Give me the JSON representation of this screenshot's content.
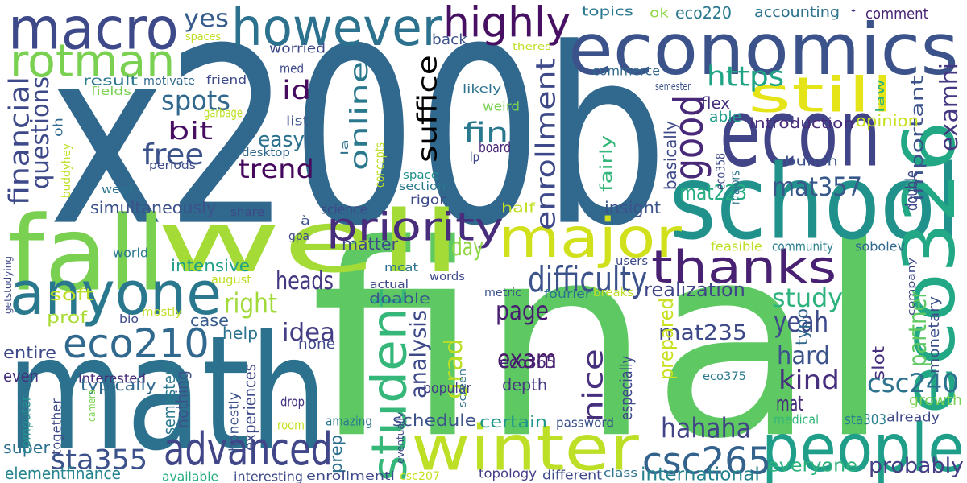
{
  "words": [
    {
      "text": "x200b",
      "color": "#31688e"
    },
    {
      "text": "final",
      "color": "#5ec962"
    },
    {
      "text": "math",
      "color": "#2c728e"
    },
    {
      "text": "economics",
      "color": "#3b528b"
    },
    {
      "text": "econ",
      "color": "#414487"
    },
    {
      "text": "school",
      "color": "#21918c"
    },
    {
      "text": "fall",
      "color": "#7ad151"
    },
    {
      "text": "well",
      "color": "#a5db36"
    },
    {
      "text": "winter",
      "color": "#bddf26"
    },
    {
      "text": "people",
      "color": "#1f9e89"
    },
    {
      "text": "eco326",
      "color": "#22a884"
    },
    {
      "text": "anyone",
      "color": "#2a788e"
    },
    {
      "text": "macro",
      "color": "#3e4989"
    },
    {
      "text": "however",
      "color": "#2c728e"
    },
    {
      "text": "rotman",
      "color": "#7ad151"
    },
    {
      "text": "major",
      "color": "#d0e11c"
    },
    {
      "text": "still",
      "color": "#e5e419"
    },
    {
      "text": "priority",
      "color": "#472d7b"
    },
    {
      "text": "thanks",
      "color": "#482173"
    },
    {
      "text": "highly",
      "color": "#471063"
    },
    {
      "text": "advanced",
      "color": "#404688"
    },
    {
      "text": "eco210",
      "color": "#31688e"
    },
    {
      "text": "student",
      "color": "#35b779"
    },
    {
      "text": "difficulty",
      "color": "#3b528b"
    },
    {
      "text": "csc265",
      "color": "#33638d"
    },
    {
      "text": "good",
      "color": "#482878"
    },
    {
      "text": "https",
      "color": "#20a486"
    },
    {
      "text": "enrollment",
      "color": "#3e4989"
    },
    {
      "text": "suffice",
      "color": "#44015"
    },
    {
      "text": "online",
      "color": "#2a788e"
    },
    {
      "text": "yes",
      "color": "#365c8d"
    },
    {
      "text": "id",
      "color": "#460b5e"
    },
    {
      "text": "spots",
      "color": "#31688e"
    },
    {
      "text": "bit",
      "color": "#470e61"
    },
    {
      "text": "free",
      "color": "#3b528b"
    },
    {
      "text": "trend",
      "color": "#46085c"
    },
    {
      "text": "easy",
      "color": "#2c728e"
    },
    {
      "text": "fin",
      "color": "#2a788e"
    },
    {
      "text": "financial",
      "color": "#3e4989"
    },
    {
      "text": "questions",
      "color": "#3e4989"
    },
    {
      "text": "hahaha",
      "color": "#414487"
    },
    {
      "text": "sta355",
      "color": "#3b528b"
    },
    {
      "text": "analysis",
      "color": "#3e4989"
    },
    {
      "text": "exam",
      "color": "#48186a"
    },
    {
      "text": "heads",
      "color": "#453781"
    },
    {
      "text": "idea",
      "color": "#433e85"
    },
    {
      "text": "page",
      "color": "#481f70"
    },
    {
      "text": "right",
      "color": "#a0da39"
    },
    {
      "text": "day",
      "color": "#8fd744"
    },
    {
      "text": "nice",
      "color": "#46307e"
    },
    {
      "text": "grad",
      "color": "#bade28"
    },
    {
      "text": "mat357",
      "color": "#38588c"
    },
    {
      "text": "examhi",
      "color": "#453882"
    },
    {
      "text": "important",
      "color": "#3b528b"
    },
    {
      "text": "partner",
      "color": "#5ec962"
    },
    {
      "text": "csc240",
      "color": "#2c728e"
    },
    {
      "text": "study",
      "color": "#2db27d"
    },
    {
      "text": "yeah",
      "color": "#3e4989"
    },
    {
      "text": "hard",
      "color": "#3b528b"
    },
    {
      "text": "kind",
      "color": "#46307e"
    },
    {
      "text": "mat",
      "color": "#472c7a"
    },
    {
      "text": "mat235",
      "color": "#3e4989"
    },
    {
      "text": "prepared",
      "color": "#c8e020"
    },
    {
      "text": "everyone",
      "color": "#2db27d"
    },
    {
      "text": "probably",
      "color": "#433e85"
    },
    {
      "text": "international",
      "color": "#26828e"
    },
    {
      "text": "realization",
      "color": "#404588"
    },
    {
      "text": "depth",
      "color": "#453781"
    },
    {
      "text": "eco365",
      "color": "#482575"
    },
    {
      "text": "schedule",
      "color": "#3b528b"
    },
    {
      "text": "certain",
      "color": "#1f968b"
    },
    {
      "text": "super",
      "color": "#2d708e"
    },
    {
      "text": "elementfinance",
      "color": "#25858e"
    },
    {
      "text": "experiences",
      "color": "#3e4989"
    },
    {
      "text": "semesters",
      "color": "#2a788e"
    },
    {
      "text": "nothing",
      "color": "#3b528b"
    },
    {
      "text": "help",
      "color": "#2c728e"
    },
    {
      "text": "case",
      "color": "#365c8d"
    },
    {
      "text": "intensive",
      "color": "#1fa187"
    },
    {
      "text": "simultaneously",
      "color": "#3b528b"
    },
    {
      "text": "soft",
      "color": "#bddf26"
    },
    {
      "text": "prof",
      "color": "#a8db34"
    },
    {
      "text": "entire",
      "color": "#3e4989"
    },
    {
      "text": "even",
      "color": "#46307e"
    },
    {
      "text": "interested",
      "color": "#472a7a"
    },
    {
      "text": "typically",
      "color": "#31688e"
    },
    {
      "text": "none",
      "color": "#3e4989"
    },
    {
      "text": "matter",
      "color": "#3e4989"
    },
    {
      "text": "drop",
      "color": "#46337f"
    },
    {
      "text": "doable",
      "color": "#38588c"
    },
    {
      "text": "popular",
      "color": "#433e85"
    },
    {
      "text": "password",
      "color": "#3b528b"
    },
    {
      "text": "especially",
      "color": "#3e4989"
    },
    {
      "text": "amazing",
      "color": "#2a788e"
    },
    {
      "text": "prep",
      "color": "#2c728e"
    },
    {
      "text": "room",
      "color": "#c8e020"
    },
    {
      "text": "honestly",
      "color": "#3b528b"
    },
    {
      "text": "together",
      "color": "#3e4989"
    },
    {
      "text": "camera",
      "color": "#7ad151"
    },
    {
      "text": "computer",
      "color": "#21918c"
    },
    {
      "text": "available",
      "color": "#27ad81"
    },
    {
      "text": "interesting",
      "color": "#3e4989"
    },
    {
      "text": "enrollmenti",
      "color": "#3e4989"
    },
    {
      "text": "csc207",
      "color": "#c8e020"
    },
    {
      "text": "topology",
      "color": "#433e85"
    },
    {
      "text": "different",
      "color": "#3e4989"
    },
    {
      "text": "class",
      "color": "#2c728e"
    },
    {
      "text": "medical",
      "color": "#35b779"
    },
    {
      "text": "sta303",
      "color": "#287d8e"
    },
    {
      "text": "already",
      "color": "#3e4989"
    },
    {
      "text": "growth",
      "color": "#7ad151"
    },
    {
      "text": "monetary",
      "color": "#3b528b"
    },
    {
      "text": "eco375",
      "color": "#2a788e"
    },
    {
      "text": "slot",
      "color": "#46307e"
    },
    {
      "text": "typo",
      "color": "#31688e"
    },
    {
      "text": "company",
      "color": "#3e4989"
    },
    {
      "text": "sobolev",
      "color": "#31688e"
    },
    {
      "text": "community",
      "color": "#287d8e"
    },
    {
      "text": "feasible",
      "color": "#bddf26"
    },
    {
      "text": "mat223",
      "color": "#25ac82"
    },
    {
      "text": "insight",
      "color": "#3b528b"
    },
    {
      "text": "half",
      "color": "#c2df23"
    },
    {
      "text": "basically",
      "color": "#3e4989"
    },
    {
      "text": "eco358",
      "color": "#3e4989"
    },
    {
      "text": "majors",
      "color": "#2c728e"
    },
    {
      "text": "double",
      "color": "#3e4989"
    },
    {
      "text": "bunch",
      "color": "#3b528b"
    },
    {
      "text": "able",
      "color": "#1f9e89"
    },
    {
      "text": "flex",
      "color": "#46307e"
    },
    {
      "text": "introduction",
      "color": "#472c7a"
    },
    {
      "text": "opinion",
      "color": "#c8e020"
    },
    {
      "text": "commerce",
      "color": "#31688e"
    },
    {
      "text": "semester",
      "color": "#3b528b"
    },
    {
      "text": "law",
      "color": "#2db27d"
    },
    {
      "text": "topics",
      "color": "#2a788e"
    },
    {
      "text": "ok",
      "color": "#8fd744"
    },
    {
      "text": "eco220",
      "color": "#2a788e"
    },
    {
      "text": "accounting",
      "color": "#2c728e"
    },
    {
      "text": "•",
      "color": "#46307e"
    },
    {
      "text": "comment",
      "color": "#482575"
    },
    {
      "text": "spaces",
      "color": "#bddf26"
    },
    {
      "text": "back",
      "color": "#3b528b"
    },
    {
      "text": "theres",
      "color": "#bddf26"
    },
    {
      "text": "worried",
      "color": "#3e4989"
    },
    {
      "text": "med",
      "color": "#3e4989"
    },
    {
      "text": "likely",
      "color": "#2c728e"
    },
    {
      "text": "weird",
      "color": "#7ad151"
    },
    {
      "text": "result",
      "color": "#2a788e"
    },
    {
      "text": "motivate",
      "color": "#31688e"
    },
    {
      "text": "friend",
      "color": "#3e4989"
    },
    {
      "text": "fields",
      "color": "#7ad151"
    },
    {
      "text": "oh",
      "color": "#31688e"
    },
    {
      "text": "garbage",
      "color": "#bddf26"
    },
    {
      "text": "list",
      "color": "#3b528b"
    },
    {
      "text": "desktop",
      "color": "#31688e"
    },
    {
      "text": "concepts",
      "color": "#bddf26"
    },
    {
      "text": "la",
      "color": "#2c728e"
    },
    {
      "text": "lp",
      "color": "#3e4989"
    },
    {
      "text": "board",
      "color": "#482878"
    },
    {
      "text": "buddyhey",
      "color": "#bddf26"
    },
    {
      "text": "periods",
      "color": "#3e4989"
    },
    {
      "text": "week",
      "color": "#2c728e"
    },
    {
      "text": "fairly",
      "color": "#35b779"
    },
    {
      "text": "space",
      "color": "#21918c"
    },
    {
      "text": "section",
      "color": "#2a788e"
    },
    {
      "text": "rigor",
      "color": "#3e4989"
    },
    {
      "text": "share",
      "color": "#3e4989"
    },
    {
      "text": "science",
      "color": "#3e4989"
    },
    {
      "text": "à",
      "color": "#3b528b"
    },
    {
      "text": "gpa",
      "color": "#3e4989"
    },
    {
      "text": "world",
      "color": "#2a788e"
    },
    {
      "text": "getstudying",
      "color": "#3e4989"
    },
    {
      "text": "august",
      "color": "#bddf26"
    },
    {
      "text": "mcat",
      "color": "#2c728e"
    },
    {
      "text": "words",
      "color": "#3e4989"
    },
    {
      "text": "actual",
      "color": "#3e4989"
    },
    {
      "text": "metric",
      "color": "#3b528b"
    },
    {
      "text": "fourier",
      "color": "#2c728e"
    },
    {
      "text": "breaks",
      "color": "#bddf26"
    },
    {
      "text": "users",
      "color": "#3e4989"
    },
    {
      "text": "mostly",
      "color": "#bddf26"
    },
    {
      "text": "bio",
      "color": "#3e4989"
    },
    {
      "text": "eventually",
      "color": "#3e4989"
    },
    {
      "text": "screen",
      "color": "#2c728e"
    }
  ]
}
